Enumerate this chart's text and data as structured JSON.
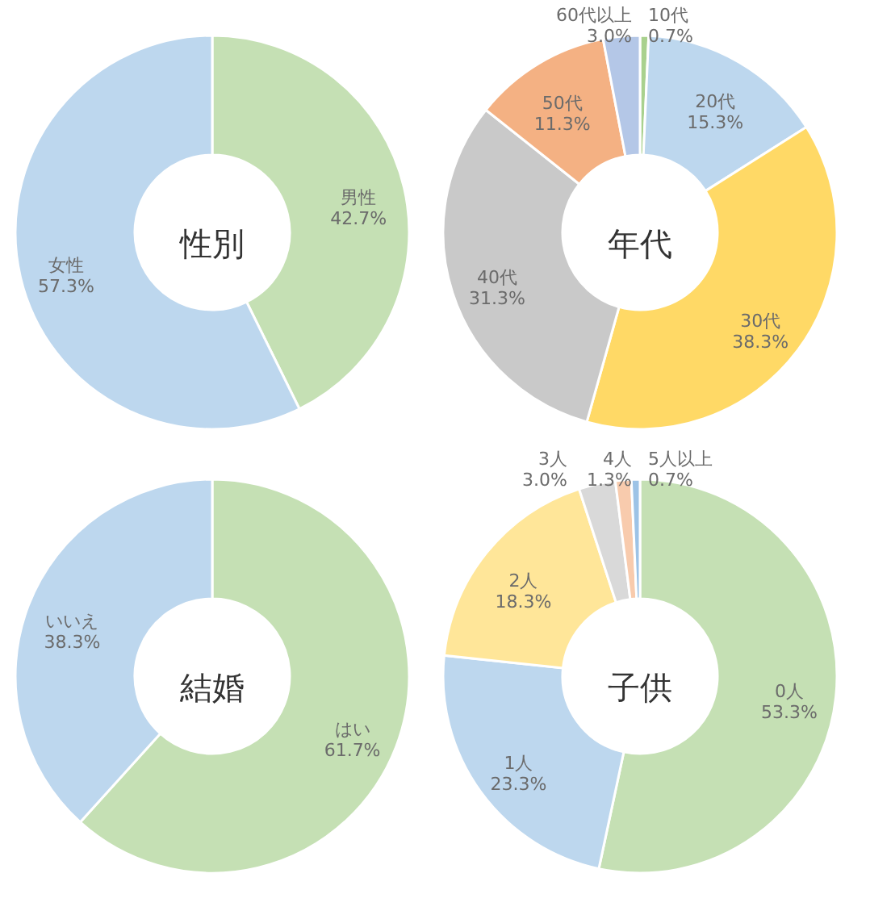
{
  "chart_data": [
    {
      "type": "donut",
      "title": "性別",
      "categories": [
        "男性",
        "女性"
      ],
      "values": [
        42.7,
        57.3
      ],
      "value_labels": [
        "42.7%",
        "57.3%"
      ],
      "colors": [
        "#c5e0b4",
        "#bdd7ee"
      ]
    },
    {
      "type": "donut",
      "title": "年代",
      "categories": [
        "10代",
        "20代",
        "30代",
        "40代",
        "50代",
        "60代以上"
      ],
      "values": [
        0.7,
        15.3,
        38.3,
        31.3,
        11.3,
        3.0
      ],
      "value_labels": [
        "0.7%",
        "15.3%",
        "38.3%",
        "31.3%",
        "11.3%",
        "3.0%"
      ],
      "colors": [
        "#a9d18e",
        "#bdd7ee",
        "#ffd966",
        "#c9c9c9",
        "#f4b183",
        "#b4c7e7"
      ]
    },
    {
      "type": "donut",
      "title": "結婚",
      "categories": [
        "はい",
        "いいえ"
      ],
      "values": [
        61.7,
        38.3
      ],
      "value_labels": [
        "61.7%",
        "38.3%"
      ],
      "colors": [
        "#c5e0b4",
        "#bdd7ee"
      ]
    },
    {
      "type": "donut",
      "title": "子供",
      "categories": [
        "0人",
        "1人",
        "2人",
        "3人",
        "4人",
        "5人以上"
      ],
      "values": [
        53.3,
        23.3,
        18.3,
        3.0,
        1.3,
        0.7
      ],
      "value_labels": [
        "53.3%",
        "23.3%",
        "18.3%",
        "3.0%",
        "1.3%",
        "0.7%"
      ],
      "colors": [
        "#c5e0b4",
        "#bdd7ee",
        "#ffe699",
        "#d9d9d9",
        "#f8cbad",
        "#9dc3e6"
      ]
    }
  ]
}
